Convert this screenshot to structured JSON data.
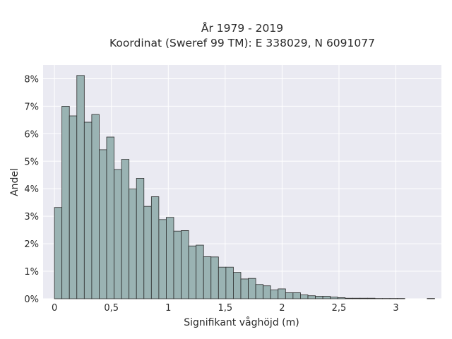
{
  "chart_data": {
    "type": "bar",
    "title": "År 1979 - 2019",
    "subtitle": "Koordinat (Sweref 99 TM): E 338029, N 6091077",
    "xlabel": "Signifikant våghöjd (m)",
    "ylabel": "Andel",
    "xlim": [
      -0.1,
      3.4
    ],
    "ylim": [
      0,
      8.5
    ],
    "x_ticks": [
      0,
      0.5,
      1,
      1.5,
      2,
      2.5,
      3
    ],
    "x_tick_labels": [
      "0",
      "0,5",
      "1",
      "1,5",
      "2",
      "2,5",
      "3"
    ],
    "y_ticks": [
      0,
      1,
      2,
      3,
      4,
      5,
      6,
      7,
      8
    ],
    "y_tick_labels": [
      "0%",
      "1%",
      "2%",
      "3%",
      "4%",
      "5%",
      "6%",
      "7%",
      "8%"
    ],
    "bin_width": 0.0655,
    "bin_start": 0.0,
    "values": [
      3.32,
      7.0,
      6.65,
      8.12,
      6.42,
      6.7,
      5.42,
      5.88,
      4.7,
      5.07,
      3.99,
      4.38,
      3.36,
      3.71,
      2.88,
      2.96,
      2.46,
      2.48,
      1.92,
      1.95,
      1.53,
      1.52,
      1.15,
      1.15,
      0.96,
      0.72,
      0.74,
      0.52,
      0.47,
      0.32,
      0.36,
      0.22,
      0.22,
      0.14,
      0.11,
      0.09,
      0.09,
      0.06,
      0.04,
      0.02,
      0.02,
      0.02,
      0.02,
      0.01,
      0.01,
      0.01,
      0.01,
      0.0,
      0.0,
      0.0,
      0.01
    ],
    "grid": true,
    "colors": {
      "background": "#eaeaf2",
      "bar_fill": "#9ab3b3",
      "bar_edge": "#2b2b2b",
      "grid": "#ffffff"
    }
  }
}
